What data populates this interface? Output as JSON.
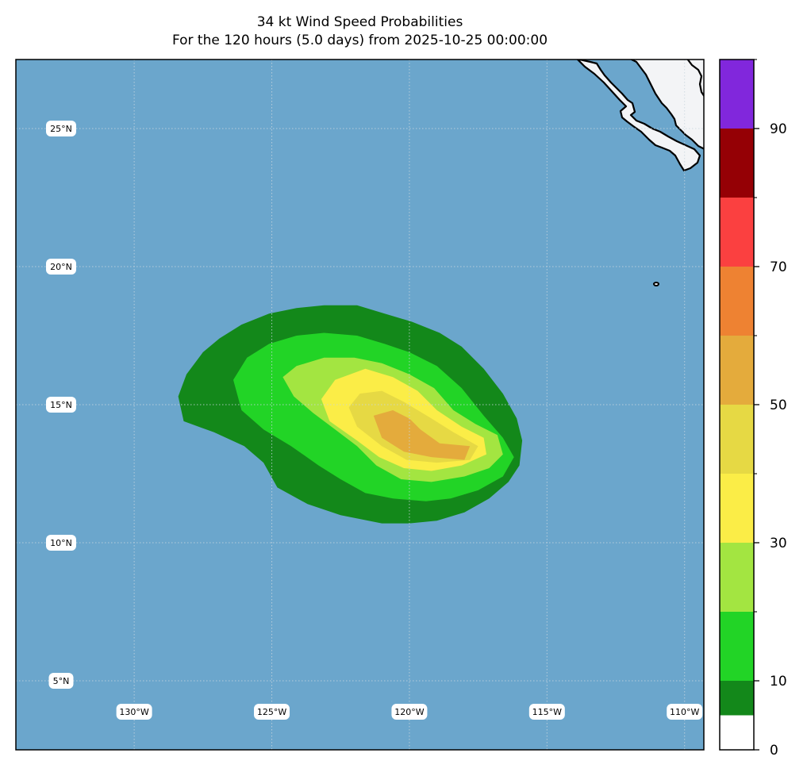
{
  "title": {
    "line1": "34 kt Wind Speed Probabilities",
    "line2": "For the 120 hours (5.0 days) from 2025-10-25 00:00:00"
  },
  "map": {
    "extent": {
      "lon_min": -134.3,
      "lon_max": -109.3,
      "lat_min": 2.5,
      "lat_max": 27.5
    },
    "ocean_color": "#6ba6cc",
    "land_color": "#f3f4f6",
    "gridlines": {
      "lons": [
        -130,
        -125,
        -120,
        -115,
        -110
      ],
      "lats": [
        5,
        10,
        15,
        20,
        25
      ]
    },
    "lon_labels": [
      "130°W",
      "125°W",
      "120°W",
      "115°W",
      "110°W"
    ],
    "lat_labels": [
      "5°N",
      "10°N",
      "15°N",
      "20°N",
      "25°N"
    ]
  },
  "probability_contours": [
    {
      "level_min": 0,
      "level_max": 10,
      "color": "#13881a",
      "points": [
        [
          -128.1,
          16.1
        ],
        [
          -127.5,
          16.9
        ],
        [
          -126.9,
          17.4
        ],
        [
          -126.1,
          17.9
        ],
        [
          -125.1,
          18.3
        ],
        [
          -124.1,
          18.5
        ],
        [
          -123.1,
          18.6
        ],
        [
          -121.9,
          18.6
        ],
        [
          -120.9,
          18.3
        ],
        [
          -119.9,
          18.0
        ],
        [
          -118.9,
          17.6
        ],
        [
          -118.1,
          17.1
        ],
        [
          -117.3,
          16.3
        ],
        [
          -116.6,
          15.4
        ],
        [
          -116.1,
          14.5
        ],
        [
          -115.9,
          13.7
        ],
        [
          -116.0,
          12.8
        ],
        [
          -116.4,
          12.2
        ],
        [
          -117.1,
          11.6
        ],
        [
          -118.0,
          11.1
        ],
        [
          -119.0,
          10.8
        ],
        [
          -120.0,
          10.7
        ],
        [
          -121.0,
          10.7
        ],
        [
          -122.5,
          11.0
        ],
        [
          -123.7,
          11.4
        ],
        [
          -124.8,
          12.0
        ],
        [
          -125.3,
          12.9
        ],
        [
          -126.0,
          13.5
        ],
        [
          -127.1,
          14.0
        ],
        [
          -128.2,
          14.4
        ],
        [
          -128.4,
          15.3
        ]
      ]
    },
    {
      "level_min": 10,
      "level_max": 20,
      "color": "#22d426",
      "points": [
        [
          -126.4,
          15.9
        ],
        [
          -125.9,
          16.7
        ],
        [
          -125.1,
          17.2
        ],
        [
          -124.1,
          17.5
        ],
        [
          -123.1,
          17.6
        ],
        [
          -121.9,
          17.5
        ],
        [
          -120.9,
          17.2
        ],
        [
          -120.0,
          16.9
        ],
        [
          -119.0,
          16.4
        ],
        [
          -118.1,
          15.6
        ],
        [
          -117.3,
          14.6
        ],
        [
          -116.6,
          13.8
        ],
        [
          -116.2,
          13.1
        ],
        [
          -116.6,
          12.4
        ],
        [
          -117.5,
          11.9
        ],
        [
          -118.5,
          11.6
        ],
        [
          -119.4,
          11.5
        ],
        [
          -120.6,
          11.6
        ],
        [
          -121.6,
          11.8
        ],
        [
          -122.5,
          12.3
        ],
        [
          -123.3,
          12.8
        ],
        [
          -124.3,
          13.5
        ],
        [
          -125.3,
          14.1
        ],
        [
          -126.1,
          14.8
        ]
      ]
    },
    {
      "level_min": 20,
      "level_max": 30,
      "color": "#a3e541",
      "points": [
        [
          -124.6,
          16.0
        ],
        [
          -124.1,
          16.4
        ],
        [
          -123.1,
          16.7
        ],
        [
          -122.0,
          16.7
        ],
        [
          -121.0,
          16.5
        ],
        [
          -120.0,
          16.1
        ],
        [
          -119.1,
          15.6
        ],
        [
          -118.4,
          14.8
        ],
        [
          -117.6,
          14.3
        ],
        [
          -116.8,
          13.9
        ],
        [
          -116.6,
          13.2
        ],
        [
          -117.1,
          12.7
        ],
        [
          -118.0,
          12.4
        ],
        [
          -119.2,
          12.2
        ],
        [
          -120.3,
          12.3
        ],
        [
          -121.2,
          12.8
        ],
        [
          -121.9,
          13.5
        ],
        [
          -122.7,
          14.1
        ],
        [
          -123.5,
          14.7
        ],
        [
          -124.2,
          15.3
        ]
      ]
    },
    {
      "level_min": 30,
      "level_max": 40,
      "color": "#fbed47",
      "points": [
        [
          -123.2,
          15.2
        ],
        [
          -122.7,
          15.9
        ],
        [
          -121.6,
          16.3
        ],
        [
          -120.6,
          16.0
        ],
        [
          -119.7,
          15.5
        ],
        [
          -119.0,
          14.8
        ],
        [
          -118.1,
          14.2
        ],
        [
          -117.3,
          13.8
        ],
        [
          -117.2,
          13.2
        ],
        [
          -118.1,
          12.8
        ],
        [
          -119.2,
          12.6
        ],
        [
          -120.2,
          12.7
        ],
        [
          -121.1,
          13.1
        ],
        [
          -121.9,
          13.7
        ],
        [
          -122.9,
          14.4
        ]
      ]
    },
    {
      "level_min": 40,
      "level_max": 50,
      "color": "#e6d944",
      "points": [
        [
          -122.2,
          14.9
        ],
        [
          -121.8,
          15.4
        ],
        [
          -121.0,
          15.5
        ],
        [
          -120.2,
          15.1
        ],
        [
          -119.2,
          14.5
        ],
        [
          -118.4,
          14.0
        ],
        [
          -117.5,
          13.5
        ],
        [
          -117.8,
          13.0
        ],
        [
          -119.0,
          12.9
        ],
        [
          -120.1,
          13.0
        ],
        [
          -121.0,
          13.5
        ],
        [
          -121.9,
          14.2
        ]
      ]
    },
    {
      "level_min": 50,
      "level_max": 60,
      "color": "#e4ab3c",
      "points": [
        [
          -121.3,
          14.6
        ],
        [
          -120.6,
          14.8
        ],
        [
          -120.0,
          14.5
        ],
        [
          -119.6,
          14.1
        ],
        [
          -118.9,
          13.6
        ],
        [
          -117.8,
          13.5
        ],
        [
          -118.0,
          13.0
        ],
        [
          -119.2,
          13.1
        ],
        [
          -120.2,
          13.3
        ],
        [
          -121.0,
          13.8
        ]
      ]
    }
  ],
  "colorbar": {
    "ticks": [
      0,
      10,
      30,
      50,
      70,
      90
    ],
    "tick_labels": [
      "0",
      "10",
      "30",
      "50",
      "70",
      "90"
    ],
    "minor_ticks": [
      20,
      40,
      60,
      80,
      100
    ],
    "bands": [
      {
        "min": 0,
        "max": 5,
        "color": "#ffffff"
      },
      {
        "min": 5,
        "max": 10,
        "color": "#13881a"
      },
      {
        "min": 10,
        "max": 20,
        "color": "#22d426"
      },
      {
        "min": 20,
        "max": 30,
        "color": "#a3e541"
      },
      {
        "min": 30,
        "max": 40,
        "color": "#fbed47"
      },
      {
        "min": 40,
        "max": 50,
        "color": "#e6d944"
      },
      {
        "min": 50,
        "max": 60,
        "color": "#e4ab3c"
      },
      {
        "min": 60,
        "max": 70,
        "color": "#ee8232"
      },
      {
        "min": 70,
        "max": 80,
        "color": "#fb4040"
      },
      {
        "min": 80,
        "max": 90,
        "color": "#950005"
      },
      {
        "min": 90,
        "max": 100,
        "color": "#8127dc"
      }
    ],
    "range": [
      0,
      100
    ]
  }
}
